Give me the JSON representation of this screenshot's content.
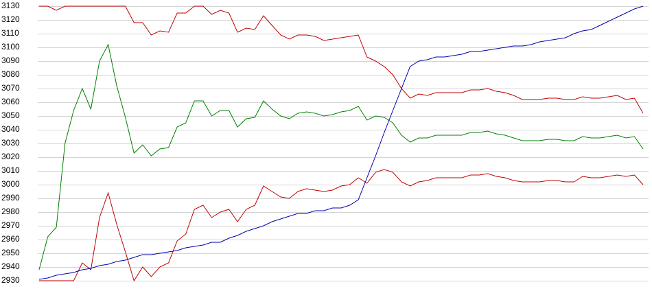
{
  "chart_data": {
    "type": "line",
    "ylim": [
      2930,
      3130
    ],
    "yticks": [
      2930,
      2940,
      2950,
      2960,
      2970,
      2980,
      2990,
      3000,
      3010,
      3020,
      3030,
      3040,
      3050,
      3060,
      3070,
      3080,
      3090,
      3100,
      3110,
      3120,
      3130
    ],
    "grid": true,
    "series": [
      {
        "color": "#c00000",
        "values": [
          3130,
          3130,
          3127,
          3130,
          3130,
          3130,
          3130,
          3130,
          3130,
          3130,
          3130,
          3118,
          3118,
          3109,
          3112,
          3111,
          3125,
          3125,
          3130,
          3130,
          3124,
          3127,
          3125,
          3111,
          3114,
          3113,
          3123,
          3116,
          3109,
          3106,
          3109,
          3109,
          3108,
          3105,
          3106,
          3107,
          3108,
          3109,
          3093,
          3090,
          3086,
          3080,
          3070,
          3063,
          3066,
          3065,
          3067,
          3067,
          3067,
          3067,
          3069,
          3069,
          3070,
          3068,
          3067,
          3065,
          3062,
          3062,
          3062,
          3063,
          3063,
          3062,
          3062,
          3064,
          3063,
          3063,
          3064,
          3065,
          3062,
          3063,
          3052
        ]
      },
      {
        "color": "#008000",
        "values": [
          2938,
          2962,
          2969,
          3030,
          3054,
          3070,
          3055,
          3090,
          3102,
          3072,
          3049,
          3023,
          3029,
          3021,
          3026,
          3027,
          3042,
          3045,
          3061,
          3061,
          3050,
          3054,
          3054,
          3042,
          3048,
          3049,
          3061,
          3055,
          3050,
          3048,
          3052,
          3053,
          3052,
          3050,
          3051,
          3053,
          3054,
          3057,
          3047,
          3050,
          3049,
          3045,
          3036,
          3031,
          3034,
          3034,
          3036,
          3036,
          3036,
          3036,
          3038,
          3038,
          3039,
          3037,
          3036,
          3034,
          3032,
          3032,
          3032,
          3033,
          3033,
          3032,
          3032,
          3035,
          3034,
          3034,
          3035,
          3036,
          3034,
          3035,
          3026
        ]
      },
      {
        "color": "#c00000",
        "values": [
          2930,
          2930,
          2930,
          2930,
          2930,
          2943,
          2938,
          2976,
          2994,
          2971,
          2951,
          2930,
          2940,
          2933,
          2940,
          2943,
          2959,
          2964,
          2982,
          2985,
          2976,
          2980,
          2982,
          2973,
          2982,
          2985,
          2999,
          2995,
          2991,
          2990,
          2995,
          2997,
          2996,
          2995,
          2996,
          2999,
          3000,
          3005,
          3001,
          3009,
          3011,
          3009,
          3002,
          2999,
          3002,
          3003,
          3005,
          3005,
          3005,
          3005,
          3007,
          3007,
          3008,
          3006,
          3005,
          3003,
          3002,
          3002,
          3002,
          3003,
          3003,
          3002,
          3002,
          3006,
          3005,
          3005,
          3006,
          3007,
          3006,
          3007,
          3000
        ]
      },
      {
        "color": "#0000b0",
        "values": [
          2931,
          2932,
          2934,
          2935,
          2936,
          2938,
          2939,
          2941,
          2942,
          2944,
          2945,
          2947,
          2949,
          2949,
          2950,
          2951,
          2952,
          2954,
          2955,
          2956,
          2958,
          2958,
          2961,
          2963,
          2966,
          2968,
          2970,
          2973,
          2975,
          2977,
          2979,
          2979,
          2981,
          2981,
          2983,
          2983,
          2985,
          2989,
          3005,
          3021,
          3038,
          3054,
          3070,
          3086,
          3090,
          3091,
          3093,
          3093,
          3094,
          3095,
          3097,
          3097,
          3098,
          3099,
          3100,
          3101,
          3101,
          3102,
          3104,
          3105,
          3106,
          3107,
          3110,
          3112,
          3113,
          3116,
          3119,
          3122,
          3125,
          3128,
          3130
        ]
      }
    ]
  }
}
